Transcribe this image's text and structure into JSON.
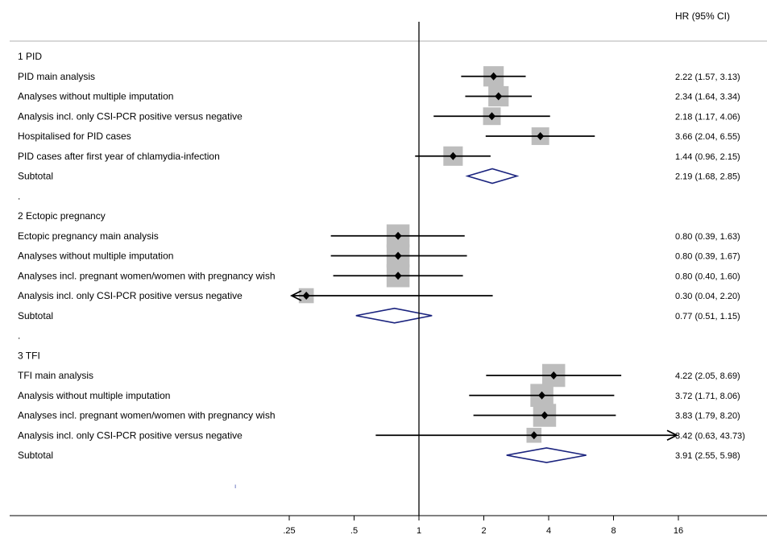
{
  "chart_data": {
    "type": "forest",
    "hr_header": "HR (95% CI)",
    "x_scale": "log",
    "x_ticks": [
      ".25",
      ".5",
      "1",
      "2",
      "4",
      "8",
      "16"
    ],
    "x_tick_values": [
      0.25,
      0.5,
      1,
      2,
      4,
      8,
      16
    ],
    "xlim": [
      0.125,
      16
    ],
    "reference_line": 1,
    "rows": [
      {
        "type": "header",
        "label": "1 PID"
      },
      {
        "type": "study",
        "label": "PID main analysis",
        "hr": 2.22,
        "lo": 1.57,
        "hi": 3.13,
        "weight": 0.6,
        "text": "2.22 (1.57, 3.13)"
      },
      {
        "type": "study",
        "label": "Analyses without multiple imputation",
        "hr": 2.34,
        "lo": 1.64,
        "hi": 3.34,
        "weight": 0.6,
        "text": "2.34 (1.64, 3.34)"
      },
      {
        "type": "study",
        "label": "Analysis incl. only CSI-PCR positive versus negative",
        "hr": 2.18,
        "lo": 1.17,
        "hi": 4.06,
        "weight": 0.45,
        "text": "2.18 (1.17, 4.06)"
      },
      {
        "type": "study",
        "label": "Hospitalised for PID cases",
        "hr": 3.66,
        "lo": 2.04,
        "hi": 6.55,
        "weight": 0.45,
        "text": "3.66 (2.04, 6.55)"
      },
      {
        "type": "study",
        "label": "PID cases after first year of chlamydia-infection",
        "hr": 1.44,
        "lo": 0.96,
        "hi": 2.15,
        "weight": 0.55,
        "text": "1.44 (0.96, 2.15)"
      },
      {
        "type": "subtotal",
        "label": "Subtotal",
        "hr": 2.19,
        "lo": 1.68,
        "hi": 2.85,
        "text": "2.19 (1.68, 2.85)"
      },
      {
        "type": "spacer",
        "label": "."
      },
      {
        "type": "header",
        "label": "2 Ectopic pregnancy"
      },
      {
        "type": "study",
        "label": "Ectopic pregnancy main analysis",
        "hr": 0.8,
        "lo": 0.39,
        "hi": 1.63,
        "weight": 0.75,
        "text": "0.80 (0.39, 1.63)"
      },
      {
        "type": "study",
        "label": "Analyses without multiple imputation",
        "hr": 0.8,
        "lo": 0.39,
        "hi": 1.67,
        "weight": 0.75,
        "text": "0.80 (0.39, 1.67)"
      },
      {
        "type": "study",
        "label": "Analyses incl. pregnant women/women with pregnancy wish",
        "hr": 0.8,
        "lo": 0.4,
        "hi": 1.6,
        "weight": 0.75,
        "text": "0.80 (0.40, 1.60)"
      },
      {
        "type": "study",
        "label": "Analysis incl. only CSI-PCR positive versus negative",
        "hr": 0.3,
        "lo": 0.04,
        "hi": 2.2,
        "weight": 0.3,
        "arrow_left": true,
        "text": "0.30 (0.04, 2.20)"
      },
      {
        "type": "subtotal",
        "label": "Subtotal",
        "hr": 0.77,
        "lo": 0.51,
        "hi": 1.15,
        "text": "0.77 (0.51, 1.15)"
      },
      {
        "type": "spacer",
        "label": "."
      },
      {
        "type": "header",
        "label": "3 TFI"
      },
      {
        "type": "study",
        "label": "TFI main analysis",
        "hr": 4.22,
        "lo": 2.05,
        "hi": 8.69,
        "weight": 0.75,
        "text": "4.22 (2.05, 8.69)"
      },
      {
        "type": "study",
        "label": "Analysis without multiple imputation",
        "hr": 3.72,
        "lo": 1.71,
        "hi": 8.06,
        "weight": 0.75,
        "text": "3.72 (1.71, 8.06)"
      },
      {
        "type": "study",
        "label": "Analyses incl. pregnant women/women with pregnancy wish",
        "hr": 3.83,
        "lo": 1.79,
        "hi": 8.2,
        "weight": 0.75,
        "text": "3.83 (1.79, 8.20)"
      },
      {
        "type": "study",
        "label": "Analysis incl. only CSI-PCR positive versus negative",
        "hr": 3.42,
        "lo": 0.63,
        "hi": 43.73,
        "weight": 0.3,
        "arrow_right": true,
        "text": "3.42 (0.63, 43.73)"
      },
      {
        "type": "subtotal",
        "label": "Subtotal",
        "hr": 3.91,
        "lo": 2.55,
        "hi": 5.98,
        "text": "3.91 (2.55, 5.98)"
      }
    ],
    "colors": {
      "box": "#bdbdbd",
      "diamond": "#1a237e",
      "line": "#000000",
      "hr_header": "#000000"
    }
  }
}
